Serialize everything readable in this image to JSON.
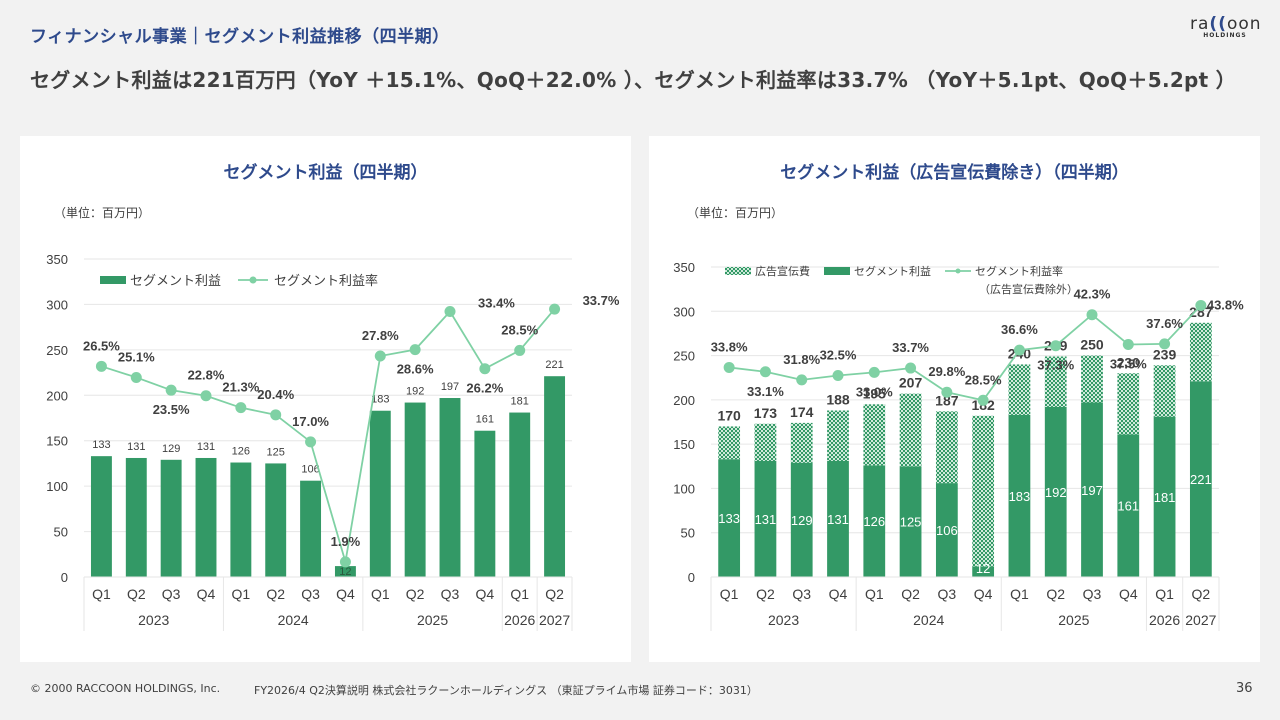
{
  "header": {
    "title": "フィナンシャル事業｜セグメント利益推移（四半期）",
    "headline": "セグメント利益は221百万円（YoY ＋15.1%、QoQ＋22.0% ）、セグメント利益率は33.7% （YoY＋5.1pt、QoQ＋5.2pt ）",
    "logo_word_pre": "ra",
    "logo_word_mid": "((",
    "logo_word_post": "oon",
    "logo_sub": "HOLDINGS"
  },
  "footer": {
    "copyright": "© 2000 RACCOON HOLDINGS, Inc.",
    "document": "FY2026/4 Q2決算説明 株式会社ラクーンホールディングス （東証プライム市場 証券コード：3031）",
    "page": "36"
  },
  "colors": {
    "bar": "#339966",
    "line": "#7fd1a4",
    "title": "#2e4a8c",
    "grid": "#e6e6e6",
    "text": "#404040"
  },
  "chart_data": [
    {
      "type": "bar",
      "title": "セグメント利益（四半期）",
      "unit_label": "（単位：百万円）",
      "categories": [
        "Q1",
        "Q2",
        "Q3",
        "Q4",
        "Q1",
        "Q2",
        "Q3",
        "Q4",
        "Q1",
        "Q2",
        "Q3",
        "Q4",
        "Q1",
        "Q2"
      ],
      "year_groups": [
        {
          "label": "2023",
          "count": 4
        },
        {
          "label": "2024",
          "count": 4
        },
        {
          "label": "2025",
          "count": 4
        },
        {
          "label": "2026",
          "count": 1
        },
        {
          "label": "2027",
          "count": 1
        }
      ],
      "series": [
        {
          "name": "セグメント利益",
          "kind": "bar",
          "values": [
            133,
            131,
            129,
            131,
            126,
            125,
            106,
            12,
            183,
            192,
            197,
            161,
            181,
            221
          ]
        },
        {
          "name": "セグメント利益率",
          "kind": "line",
          "values": [
            26.5,
            25.1,
            23.5,
            22.8,
            21.3,
            20.4,
            17.0,
            1.9,
            27.8,
            28.6,
            33.4,
            26.2,
            28.5,
            33.7
          ],
          "labels": [
            "26.5%",
            "25.1%",
            "23.5%",
            "22.8%",
            "21.3%",
            "20.4%",
            "17.0%",
            "1.9%",
            "27.8%",
            "28.6%",
            "33.4%",
            "26.2%",
            "28.5%",
            "33.7%"
          ]
        }
      ],
      "yticks": [
        0,
        50,
        100,
        150,
        200,
        250,
        300,
        350
      ],
      "ylim": [
        0,
        350
      ],
      "line_scale": "percent plotted on secondary (hidden) axis 0–40%",
      "line_ylim": [
        0,
        40
      ],
      "grid": true,
      "legend": "top-left"
    },
    {
      "type": "bar",
      "stacked": true,
      "title": "セグメント利益（広告宣伝費除き）（四半期）",
      "unit_label": "（単位：百万円）",
      "categories": [
        "Q1",
        "Q2",
        "Q3",
        "Q4",
        "Q1",
        "Q2",
        "Q3",
        "Q4",
        "Q1",
        "Q2",
        "Q3",
        "Q4",
        "Q1",
        "Q2"
      ],
      "year_groups": [
        {
          "label": "2023",
          "count": 4
        },
        {
          "label": "2024",
          "count": 4
        },
        {
          "label": "2025",
          "count": 4
        },
        {
          "label": "2026",
          "count": 1
        },
        {
          "label": "2027",
          "count": 1
        }
      ],
      "series": [
        {
          "name": "セグメント利益",
          "kind": "bar",
          "values": [
            133,
            131,
            129,
            131,
            126,
            125,
            106,
            12,
            183,
            192,
            197,
            161,
            181,
            221
          ]
        },
        {
          "name": "広告宣伝費",
          "kind": "bar-hatched",
          "values": [
            37,
            42,
            45,
            57,
            69,
            82,
            81,
            170,
            57,
            57,
            53,
            69,
            58,
            66
          ]
        },
        {
          "name": "セグメント利益率",
          "name_note": "（広告宣伝費除外）",
          "kind": "line",
          "values": [
            33.8,
            33.1,
            31.8,
            32.5,
            33.0,
            33.7,
            29.8,
            28.5,
            36.6,
            37.3,
            42.3,
            37.5,
            37.6,
            43.8
          ],
          "labels": [
            "33.8%",
            "33.1%",
            "31.8%",
            "32.5%",
            "33.0%",
            "33.7%",
            "29.8%",
            "28.5%",
            "36.6%",
            "37.3%",
            "42.3%",
            "37.5%",
            "37.6%",
            "43.8%"
          ]
        }
      ],
      "totals": [
        170,
        173,
        174,
        188,
        195,
        207,
        187,
        182,
        240,
        249,
        250,
        230,
        239,
        287
      ],
      "yticks": [
        0,
        50,
        100,
        150,
        200,
        250,
        300,
        350
      ],
      "ylim": [
        0,
        350
      ],
      "line_ylim": [
        0,
        50
      ],
      "grid": true,
      "legend": "top"
    }
  ]
}
